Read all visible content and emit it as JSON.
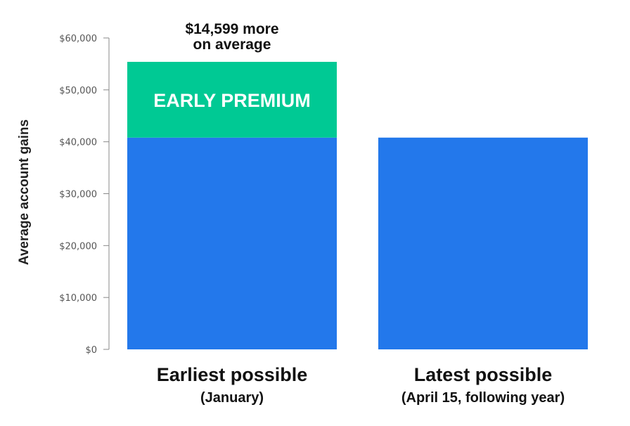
{
  "chart_data": {
    "type": "bar",
    "stacked": true,
    "ylabel": "Average account gains",
    "ylim": [
      0,
      60000
    ],
    "yticks": [
      0,
      10000,
      20000,
      30000,
      40000,
      50000,
      60000
    ],
    "ytick_labels": [
      "$0",
      "$10,000",
      "$20,000",
      "$30,000",
      "$40,000",
      "$50,000",
      "$60,000"
    ],
    "categories": [
      {
        "main": "Earliest possible",
        "sub": "(January)"
      },
      {
        "main": "Latest possible",
        "sub": "(April 15, following year)"
      }
    ],
    "series": [
      {
        "key": "base",
        "color": "#2378eb",
        "values": [
          40800,
          40800
        ]
      },
      {
        "key": "premium",
        "color": "#00c994",
        "values": [
          14599,
          0
        ],
        "bar_label": "EARLY PREMIUM"
      }
    ],
    "annotation": {
      "lines": [
        "$14,599 more",
        "on average"
      ]
    },
    "grid": false,
    "axis_color": "#888888"
  }
}
